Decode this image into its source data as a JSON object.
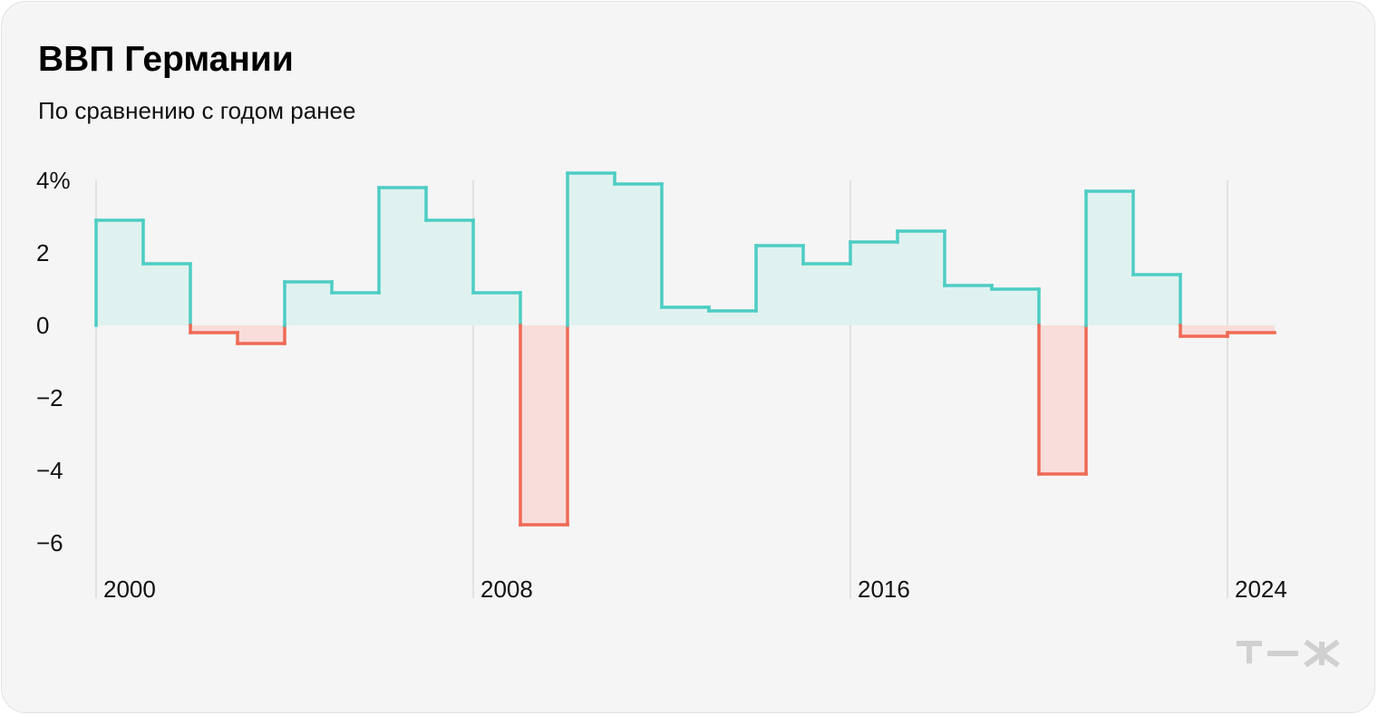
{
  "title": "ВВП Германии",
  "subtitle": "По сравнению с годом ранее",
  "logo_text": "т—ж",
  "colors": {
    "positive_line": "#4ecdc4",
    "positive_fill": "#dff2ef",
    "negative_line": "#ef6a55",
    "negative_fill": "#f8dddb",
    "background": "#f5f5f5"
  },
  "chart_data": {
    "type": "area",
    "style": "step",
    "title": "ВВП Германии",
    "subtitle": "По сравнению с годом ранее",
    "x": [
      2000,
      2001,
      2002,
      2003,
      2004,
      2005,
      2006,
      2007,
      2008,
      2009,
      2010,
      2011,
      2012,
      2013,
      2014,
      2015,
      2016,
      2017,
      2018,
      2019,
      2020,
      2021,
      2022,
      2023,
      2024
    ],
    "values": [
      2.9,
      1.7,
      -0.2,
      -0.5,
      1.2,
      0.9,
      3.8,
      2.9,
      0.9,
      -5.5,
      4.2,
      3.9,
      0.5,
      0.4,
      2.2,
      1.7,
      2.3,
      2.6,
      1.1,
      1.0,
      -4.1,
      3.7,
      1.4,
      -0.3,
      -0.2
    ],
    "yticks": [
      4,
      2,
      0,
      -2,
      -4,
      -6
    ],
    "ytick_labels": [
      "4%",
      "2",
      "0",
      "−2",
      "−4",
      "−6"
    ],
    "xticks": [
      2000,
      2008,
      2016,
      2024
    ],
    "ylim": [
      -6,
      4
    ],
    "grid": "vertical lines at labeled years",
    "legend": "none"
  }
}
